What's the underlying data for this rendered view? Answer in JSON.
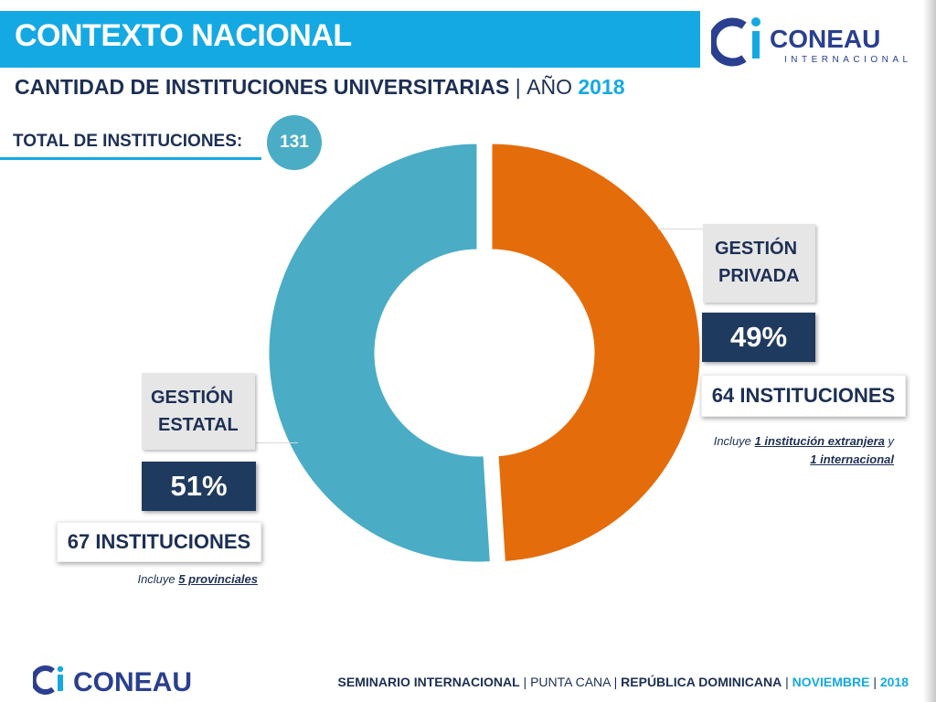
{
  "header": {
    "title": "CONTEXTO NACIONAL",
    "subtitle_main": "CANTIDAD DE INSTITUCIONES UNIVERSITARIAS",
    "subtitle_sep": "|",
    "subtitle_year_label": "AÑO",
    "subtitle_year": "2018"
  },
  "total": {
    "label": "TOTAL DE INSTITUCIONES:",
    "value": "131"
  },
  "logos": {
    "top_brand": "CONEAU",
    "top_tagline": "INTERNACIONAL",
    "bottom_brand": "CONEAU"
  },
  "colors": {
    "privada": "#e46c0a",
    "estatal": "#4bacc6",
    "title_bar": "#14a9e3",
    "dark_navy": "#1f3a5f"
  },
  "chart_data": {
    "type": "pie",
    "style": "doughnut",
    "categories": [
      "GESTIÓN PRIVADA",
      "GESTIÓN ESTATAL"
    ],
    "values": [
      49,
      51
    ],
    "counts": [
      64,
      67
    ],
    "series": [
      {
        "name": "GESTIÓN PRIVADA",
        "value": 49,
        "count": 64
      },
      {
        "name": "GESTIÓN ESTATAL",
        "value": 51,
        "count": 67
      }
    ]
  },
  "privada": {
    "label_line1": "GESTIÓN",
    "label_line2": "PRIVADA",
    "percent": "49%",
    "count_label": "64 INSTITUCIONES",
    "note_pre": "Incluye",
    "note_bold1": "1 institución extranjera",
    "note_mid": "y",
    "note_bold2": "1 internacional"
  },
  "estatal": {
    "label_line1": "GESTIÓN",
    "label_line2": "ESTATAL",
    "percent": "51%",
    "count_label": "67 INSTITUCIONES",
    "note_pre": "Incluye",
    "note_bold": "5 provinciales"
  },
  "footer": {
    "event": "SEMINARIO INTERNACIONAL",
    "sep": "|",
    "city": "PUNTA CANA",
    "country": "REPÚBLICA DOMINICANA",
    "month": "NOVIEMBRE",
    "year": "2018"
  }
}
